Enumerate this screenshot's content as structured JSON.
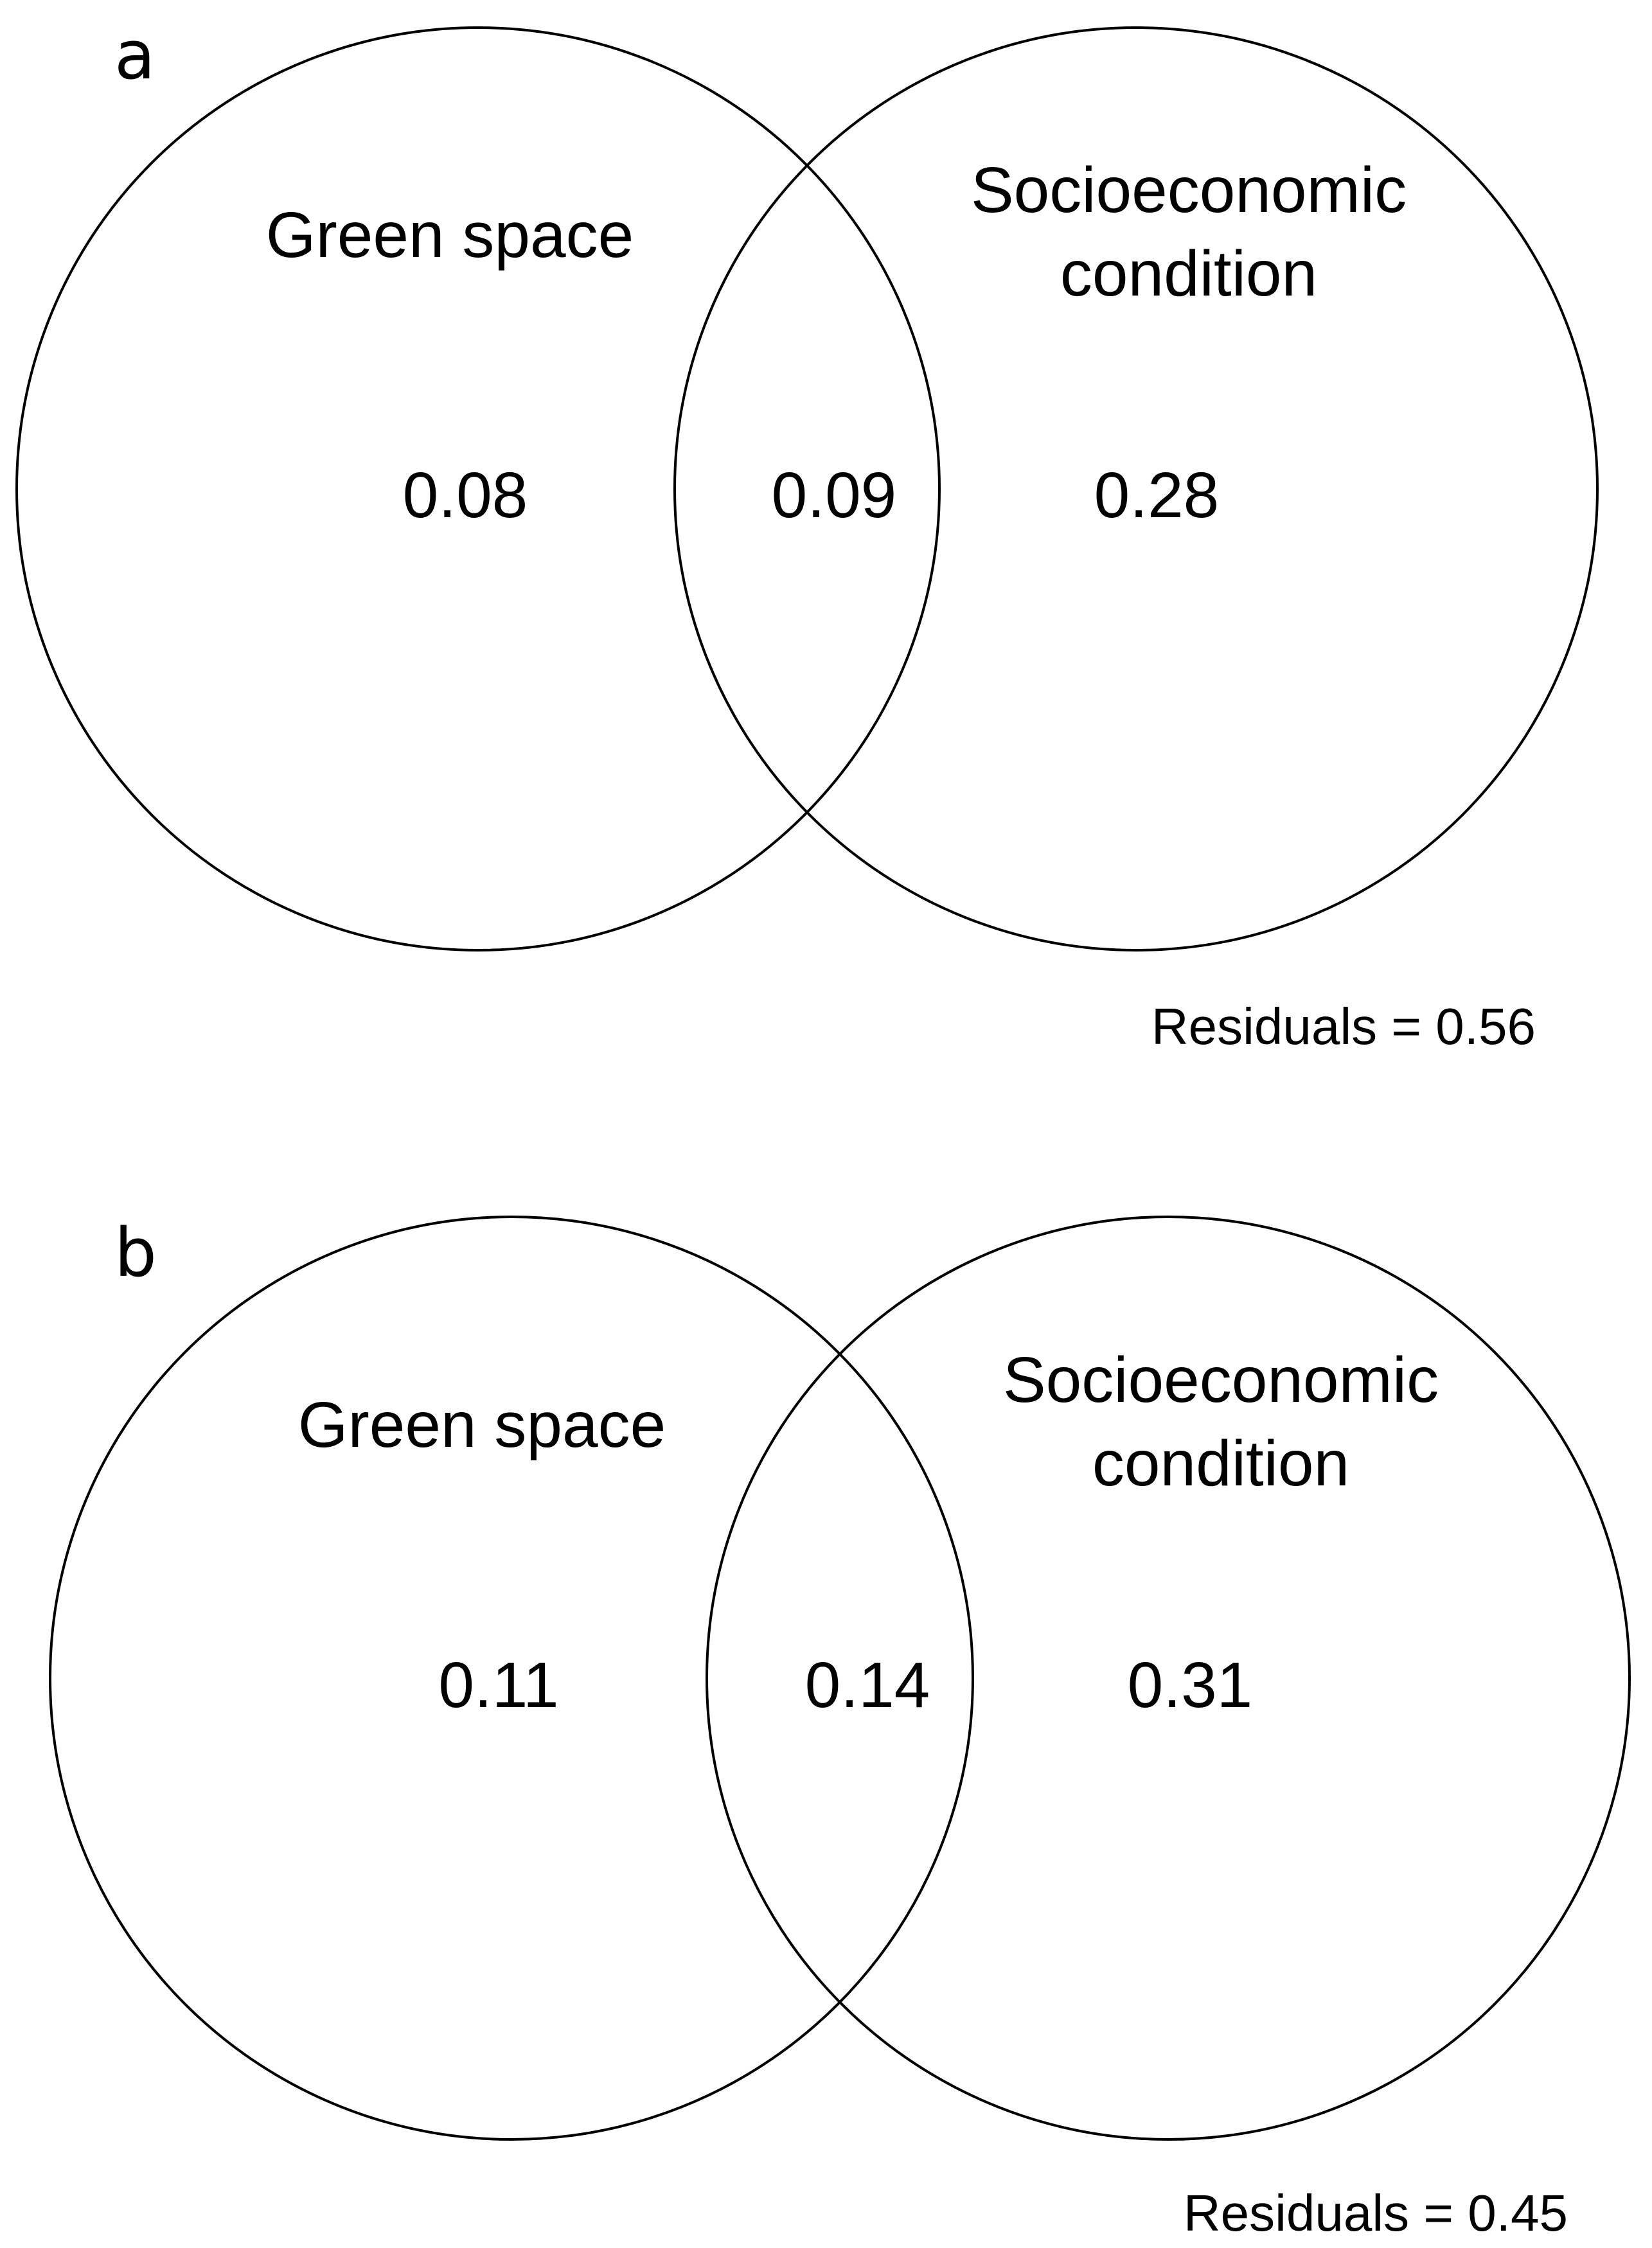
{
  "panels": [
    {
      "letter": "a",
      "left_set": {
        "label": "Green space"
      },
      "right_set": {
        "label_line1": "Socioeconomic",
        "label_line2": "condition"
      },
      "values": {
        "left_only": "0.08",
        "overlap": "0.09",
        "right_only": "0.28"
      },
      "residuals": "Residuals = 0.56"
    },
    {
      "letter": "b",
      "left_set": {
        "label": "Green space"
      },
      "right_set": {
        "label_line1": "Socioeconomic",
        "label_line2": "condition"
      },
      "values": {
        "left_only": "0.11",
        "overlap": "0.14",
        "right_only": "0.31"
      },
      "residuals": "Residuals = 0.45"
    }
  ],
  "colors": {
    "stroke": "#000000",
    "background": "#ffffff"
  }
}
